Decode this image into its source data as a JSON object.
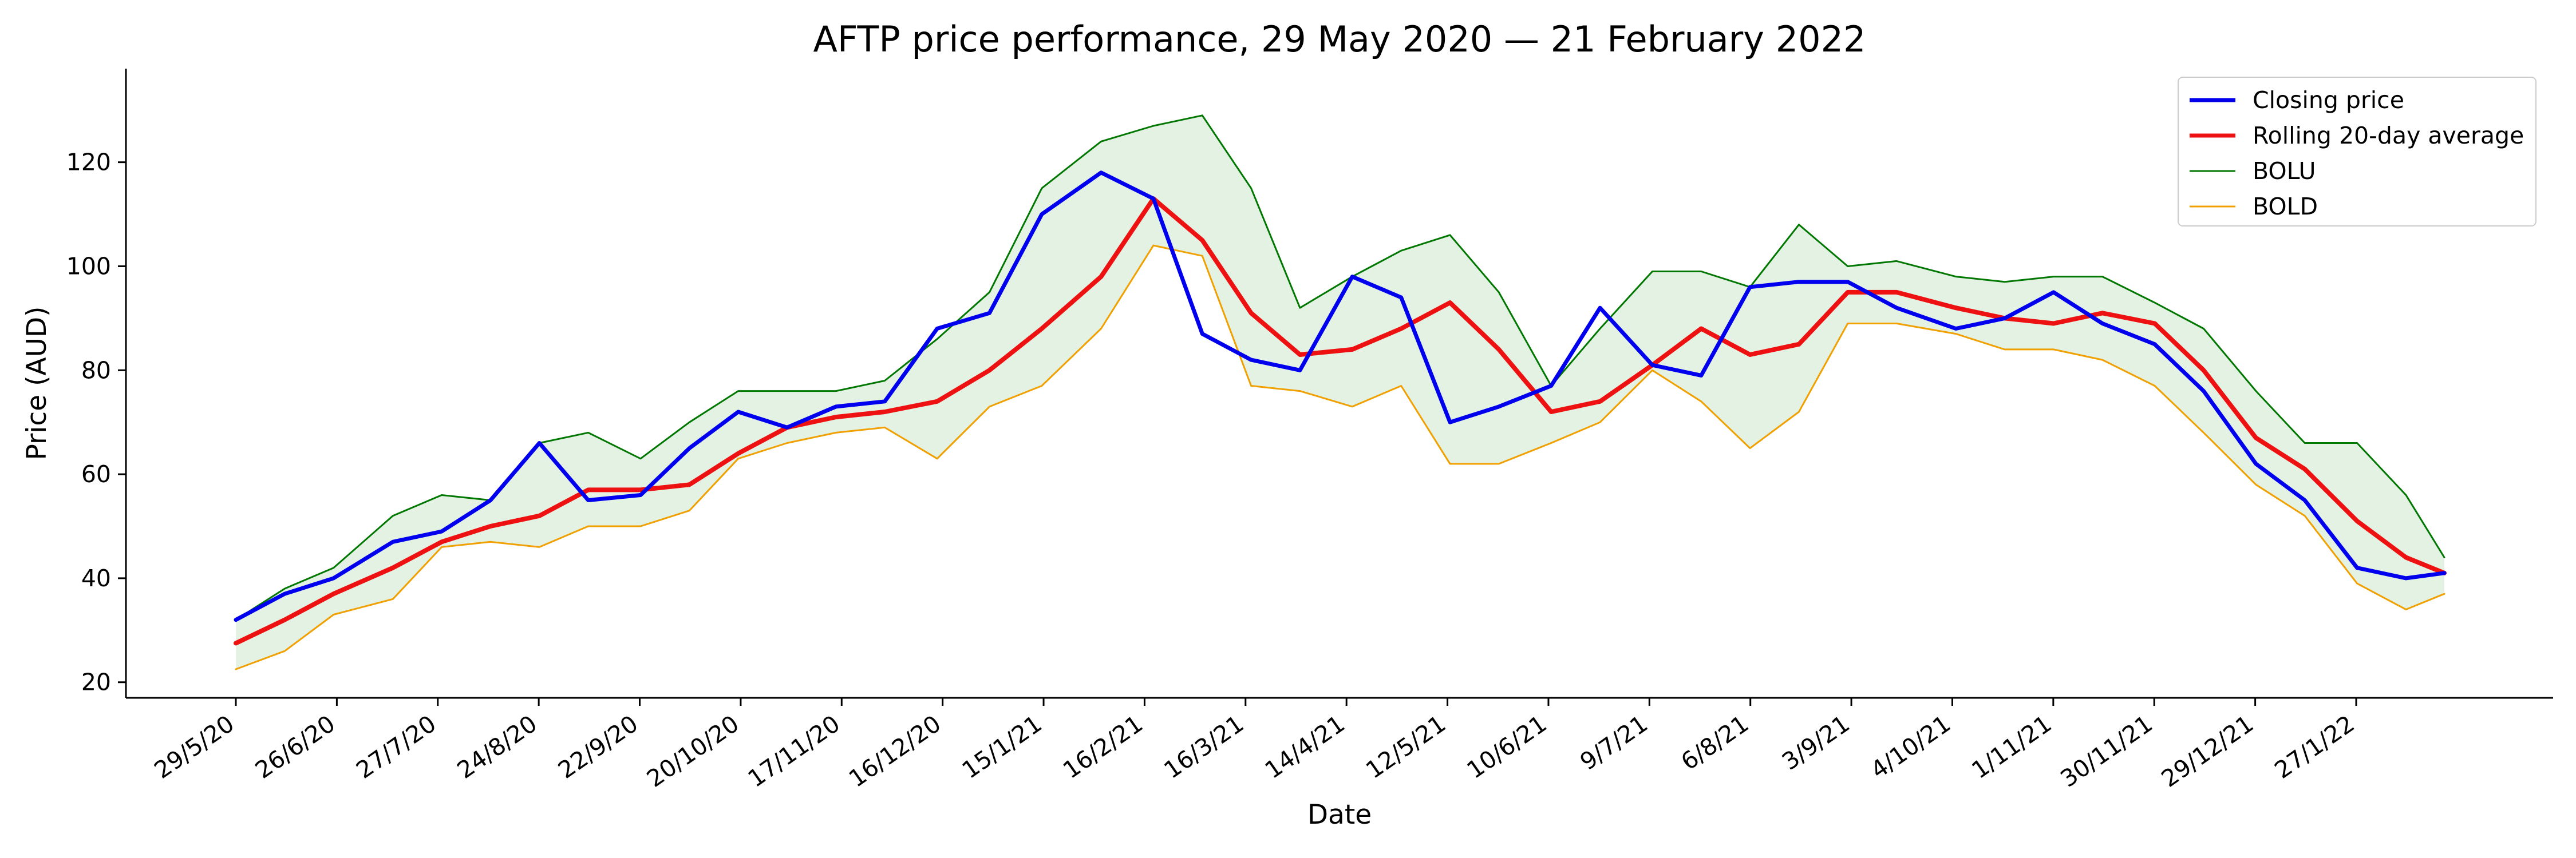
{
  "chart_data": {
    "type": "line",
    "title": "AFTP price performance, 29 May 2020 — 21 February 2022",
    "xlabel": "Date",
    "ylabel": "Price (AUD)",
    "x_tick_labels": [
      "29/5/20",
      "26/6/20",
      "27/7/20",
      "24/8/20",
      "22/9/20",
      "20/10/20",
      "17/11/20",
      "16/12/20",
      "15/1/21",
      "16/2/21",
      "16/3/21",
      "14/4/21",
      "12/5/21",
      "10/6/21",
      "9/7/21",
      "6/8/21",
      "3/9/21",
      "4/10/21",
      "1/11/21",
      "30/11/21",
      "29/12/21",
      "27/1/22"
    ],
    "y_ticks": [
      20,
      40,
      60,
      80,
      100,
      120
    ],
    "ylim": [
      17,
      138
    ],
    "legend_position": "top-right",
    "band_fill_color": "#e3f2e3",
    "x": [
      "2020-05-29",
      "2020-06-12",
      "2020-06-26",
      "2020-07-13",
      "2020-07-27",
      "2020-08-10",
      "2020-08-24",
      "2020-09-07",
      "2020-09-22",
      "2020-10-06",
      "2020-10-20",
      "2020-11-03",
      "2020-11-17",
      "2020-12-01",
      "2020-12-16",
      "2020-12-31",
      "2021-01-15",
      "2021-02-01",
      "2021-02-16",
      "2021-03-02",
      "2021-03-16",
      "2021-03-30",
      "2021-04-14",
      "2021-04-28",
      "2021-05-12",
      "2021-05-26",
      "2021-06-10",
      "2021-06-24",
      "2021-07-09",
      "2021-07-23",
      "2021-08-06",
      "2021-08-20",
      "2021-09-03",
      "2021-09-17",
      "2021-10-04",
      "2021-10-18",
      "2021-11-01",
      "2021-11-15",
      "2021-11-30",
      "2021-12-14",
      "2021-12-29",
      "2022-01-12",
      "2022-01-27",
      "2022-02-10",
      "2022-02-21"
    ],
    "series": [
      {
        "name": "Closing price",
        "color": "#0000ee",
        "values": [
          32,
          37,
          40,
          47,
          49,
          55,
          66,
          55,
          56,
          65,
          72,
          69,
          73,
          74,
          88,
          91,
          110,
          118,
          113,
          87,
          82,
          80,
          98,
          94,
          70,
          73,
          77,
          92,
          81,
          79,
          96,
          97,
          97,
          92,
          88,
          90,
          95,
          89,
          85,
          76,
          62,
          55,
          42,
          40,
          41
        ]
      },
      {
        "name": "Rolling 20-day average",
        "color": "#ee1111",
        "values": [
          27.5,
          32,
          37,
          42,
          47,
          50,
          52,
          57,
          57,
          58,
          64,
          69,
          71,
          72,
          74,
          80,
          88,
          98,
          113,
          105,
          91,
          83,
          84,
          88,
          93,
          84,
          72,
          74,
          81,
          88,
          83,
          85,
          95,
          95,
          92,
          90,
          89,
          91,
          89,
          80,
          67,
          61,
          51,
          44,
          41
        ]
      },
      {
        "name": "BOLU",
        "color": "#007700",
        "values": [
          32,
          38,
          42,
          52,
          56,
          55,
          66,
          68,
          63,
          70,
          76,
          76,
          76,
          78,
          86,
          95,
          115,
          124,
          127,
          129,
          115,
          92,
          98,
          103,
          106,
          95,
          77,
          88,
          99,
          99,
          96,
          108,
          100,
          101,
          98,
          97,
          98,
          98,
          93,
          88,
          76,
          66,
          66,
          56,
          44
        ]
      },
      {
        "name": "BOLD",
        "color": "#f0a000",
        "values": [
          22.5,
          26,
          33,
          36,
          46,
          47,
          46,
          50,
          50,
          53,
          63,
          66,
          68,
          69,
          63,
          73,
          77,
          88,
          104,
          102,
          77,
          76,
          73,
          77,
          62,
          62,
          66,
          70,
          80,
          74,
          65,
          72,
          89,
          89,
          87,
          84,
          84,
          82,
          77,
          68,
          58,
          52,
          39,
          34,
          37
        ]
      }
    ]
  }
}
